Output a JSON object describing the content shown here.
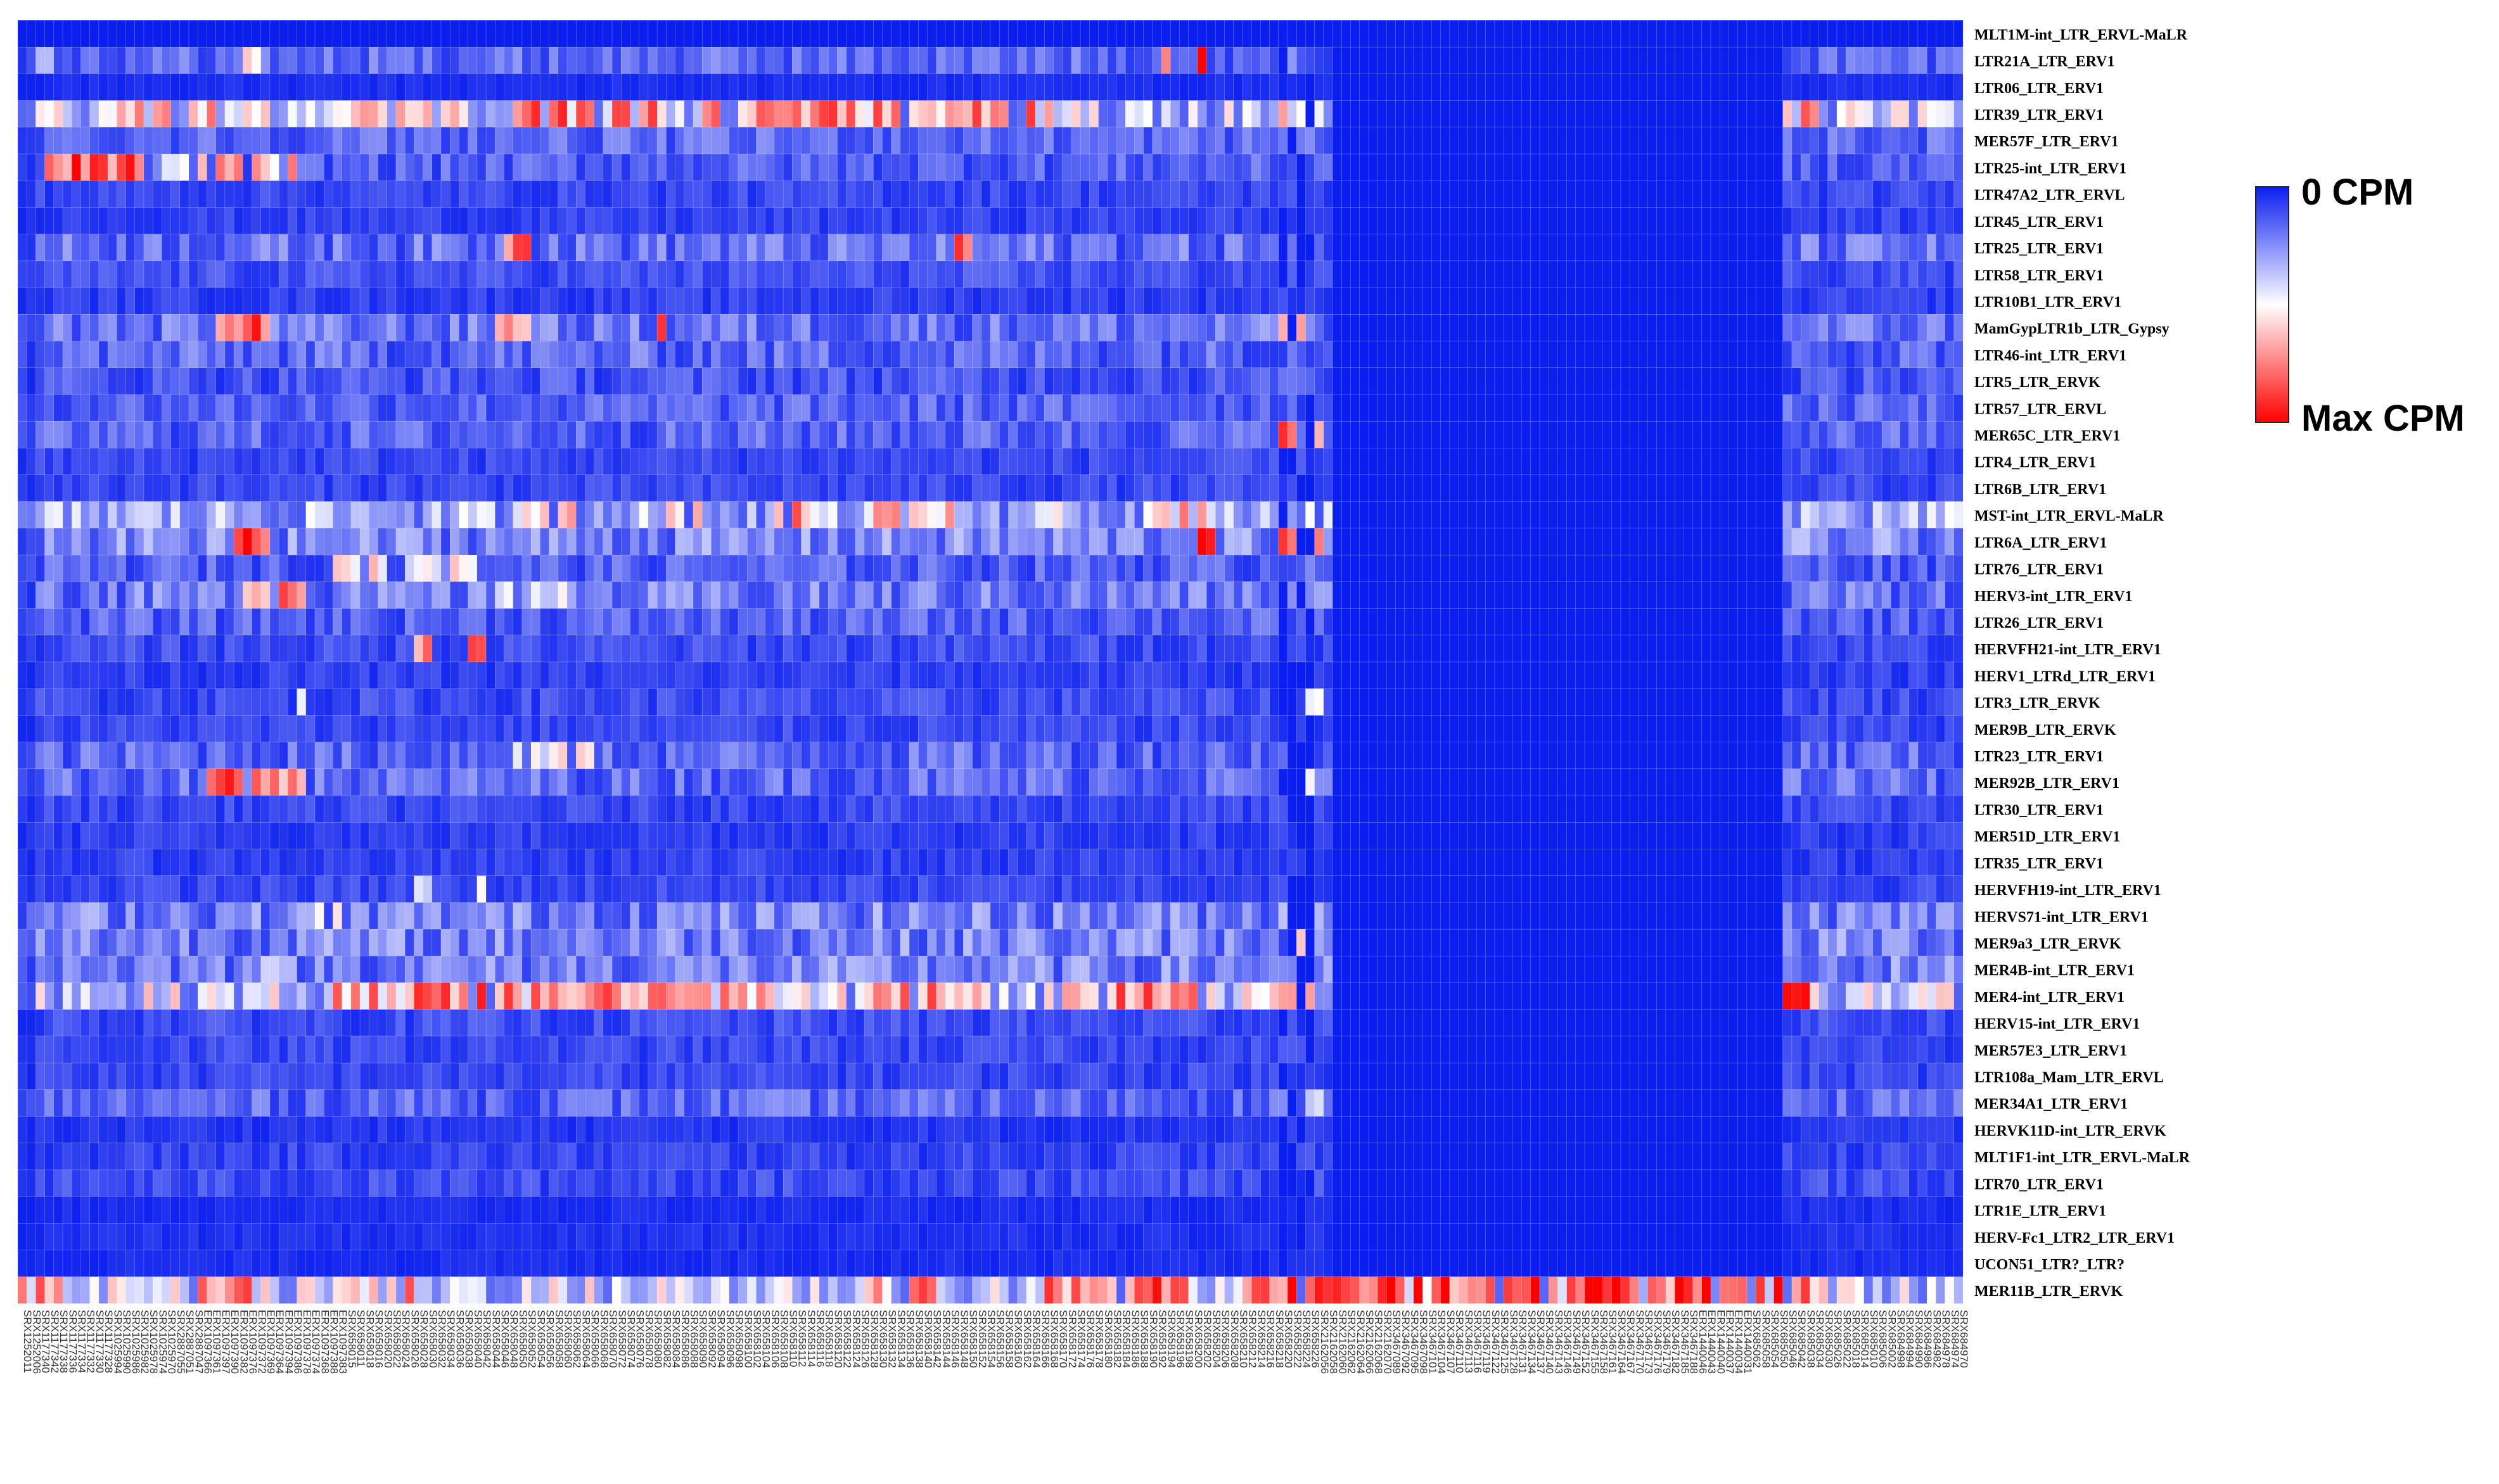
{
  "chart_data": {
    "type": "heatmap",
    "title": "",
    "xlabel": "",
    "ylabel": "",
    "legend": {
      "min_label": "0 CPM",
      "max_label": "Max CPM",
      "colors": [
        "#0a1ef0",
        "#ffffff",
        "#ff0000"
      ]
    },
    "rows": [
      "MLT1M-int_LTR_ERVL-MaLR",
      "LTR21A_LTR_ERV1",
      "LTR06_LTR_ERV1",
      "LTR39_LTR_ERV1",
      "MER57F_LTR_ERV1",
      "LTR25-int_LTR_ERV1",
      "LTR47A2_LTR_ERVL",
      "LTR45_LTR_ERV1",
      "LTR25_LTR_ERV1",
      "LTR58_LTR_ERV1",
      "LTR10B1_LTR_ERV1",
      "MamGypLTR1b_LTR_Gypsy",
      "LTR46-int_LTR_ERV1",
      "LTR5_LTR_ERVK",
      "LTR57_LTR_ERVL",
      "MER65C_LTR_ERV1",
      "LTR4_LTR_ERV1",
      "LTR6B_LTR_ERV1",
      "MST-int_LTR_ERVL-MaLR",
      "LTR6A_LTR_ERV1",
      "LTR76_LTR_ERV1",
      "HERV3-int_LTR_ERV1",
      "LTR26_LTR_ERV1",
      "HERVFH21-int_LTR_ERV1",
      "HERV1_LTRd_LTR_ERV1",
      "LTR3_LTR_ERVK",
      "MER9B_LTR_ERVK",
      "LTR23_LTR_ERV1",
      "MER92B_LTR_ERV1",
      "LTR30_LTR_ERV1",
      "MER51D_LTR_ERV1",
      "LTR35_LTR_ERV1",
      "HERVFH19-int_LTR_ERV1",
      "HERVS71-int_LTR_ERV1",
      "MER9a3_LTR_ERVK",
      "MER4B-int_LTR_ERV1",
      "MER4-int_LTR_ERV1",
      "HERV15-int_LTR_ERV1",
      "MER57E3_LTR_ERV1",
      "LTR108a_Mam_LTR_ERVL",
      "MER34A1_LTR_ERV1",
      "HERVK11D-int_LTR_ERVK",
      "MLT1F1-int_LTR_ERVL-MaLR",
      "LTR70_LTR_ERV1",
      "LTR1E_LTR_ERV1",
      "HERV-Fc1_LTR2_LTR_ERV1",
      "UCON51_LTR?_LTR?",
      "MER11B_LTR_ERVK"
    ],
    "columns": [
      "SRX1252011",
      "SRX1252006",
      "SRX1177340",
      "SRX1177342",
      "SRX1177338",
      "SRX1177336",
      "SRX1177334",
      "SRX1177332",
      "SRX1177330",
      "SRX1177328",
      "SRX1025994",
      "SRX1025990",
      "SRX1025986",
      "SRX1025982",
      "SRX1025978",
      "SRX1025974",
      "SRX1025970",
      "SRX2887055",
      "SRX2887051",
      "SRX2887047",
      "ERX1097366",
      "ERX1097361",
      "ERX1097397",
      "ERX1097390",
      "ERX1097382",
      "ERX1097376",
      "ERX1097372",
      "ERX1097369",
      "ERX1097364",
      "ERX1097394",
      "ERX1097386",
      "ERX1097378",
      "ERX1097374",
      "ERX1097368",
      "ERX1097388",
      "ERX1097383",
      "SRX658015",
      "SRX658011",
      "SRX658018",
      "SRX658016",
      "SRX658020",
      "SRX658022",
      "SRX658024",
      "SRX658026",
      "SRX658028",
      "SRX658030",
      "SRX658032",
      "SRX658034",
      "SRX658036",
      "SRX658038",
      "SRX658040",
      "SRX658042",
      "SRX658044",
      "SRX658046",
      "SRX658048",
      "SRX658050",
      "SRX658052",
      "SRX658054",
      "SRX658056",
      "SRX658058",
      "SRX658060",
      "SRX658062",
      "SRX658064",
      "SRX658066",
      "SRX658068",
      "SRX658070",
      "SRX658072",
      "SRX658074",
      "SRX658076",
      "SRX658078",
      "SRX658080",
      "SRX658082",
      "SRX658084",
      "SRX658086",
      "SRX658088",
      "SRX658090",
      "SRX658092",
      "SRX658094",
      "SRX658096",
      "SRX658098",
      "SRX658100",
      "SRX658102",
      "SRX658104",
      "SRX658106",
      "SRX658108",
      "SRX658110",
      "SRX658112",
      "SRX658114",
      "SRX658116",
      "SRX658118",
      "SRX658120",
      "SRX658122",
      "SRX658124",
      "SRX658126",
      "SRX658128",
      "SRX658130",
      "SRX658132",
      "SRX658134",
      "SRX658136",
      "SRX658138",
      "SRX658140",
      "SRX658142",
      "SRX658144",
      "SRX658146",
      "SRX658148",
      "SRX658150",
      "SRX658152",
      "SRX658154",
      "SRX658156",
      "SRX658158",
      "SRX658160",
      "SRX658162",
      "SRX658164",
      "SRX658166",
      "SRX658168",
      "SRX658170",
      "SRX658172",
      "SRX658174",
      "SRX658176",
      "SRX658178",
      "SRX658180",
      "SRX658182",
      "SRX658184",
      "SRX658186",
      "SRX658188",
      "SRX658190",
      "SRX658192",
      "SRX658194",
      "SRX658196",
      "SRX658198",
      "SRX658200",
      "SRX658202",
      "SRX658204",
      "SRX658206",
      "SRX658208",
      "SRX658210",
      "SRX658212",
      "SRX658214",
      "SRX658216",
      "SRX658218",
      "SRX658220",
      "SRX658222",
      "SRX658224",
      "SRX658226",
      "SRX2162056",
      "SRX2162058",
      "SRX2162060",
      "SRX2162062",
      "SRX2162064",
      "SRX2162066",
      "SRX2162068",
      "SRX2162070",
      "SRX3467089",
      "SRX3467092",
      "SRX3467095",
      "SRX3467098",
      "SRX3467101",
      "SRX3467104",
      "SRX3467107",
      "SRX3467110",
      "SRX3467113",
      "SRX3467116",
      "SRX3467119",
      "SRX3467122",
      "SRX3467125",
      "SRX3467128",
      "SRX3467131",
      "SRX3467134",
      "SRX3467137",
      "SRX3467140",
      "SRX3467143",
      "SRX3467146",
      "SRX3467149",
      "SRX3467152",
      "SRX3467155",
      "SRX3467158",
      "SRX3467161",
      "SRX3467164",
      "SRX3467167",
      "SRX3467170",
      "SRX3467173",
      "SRX3467176",
      "SRX3467179",
      "SRX3467182",
      "SRX3467185",
      "SRX3467188",
      "ERX1440046",
      "ERX1440043",
      "ERX1440040",
      "ERX1440037",
      "ERX1440034",
      "ERX1440031",
      "SRX685062",
      "SRX685058",
      "SRX685054",
      "SRX685050",
      "SRX685046",
      "SRX685042",
      "SRX685038",
      "SRX685034",
      "SRX685030",
      "SRX685026",
      "SRX685022",
      "SRX685018",
      "SRX685014",
      "SRX685010",
      "SRX685006",
      "SRX685002",
      "SRX684998",
      "SRX684994",
      "SRX684990",
      "SRX684986",
      "SRX684982",
      "SRX684978",
      "SRX684974",
      "SRX684970"
    ],
    "value_range": [
      0,
      1
    ],
    "profiles": {
      "MLT1M-int_LTR_ERVL-MaLR": {
        "base": 0.0,
        "spread": 0.0
      },
      "LTR21A_LTR_ERV1": {
        "base": 0.16,
        "spread": 0.22,
        "hot": [
          [
            2,
            4,
            0.42
          ],
          [
            24,
            27,
            0.62
          ],
          [
            36,
            37,
            0.95
          ],
          [
            127,
            128,
            0.95
          ],
          [
            131,
            132,
            0.98
          ]
        ]
      },
      "LTR06_LTR_ERV1": {
        "base": 0.02,
        "spread": 0.05
      },
      "LTR39_LTR_ERV1": {
        "base": 0.36,
        "spread": 0.5,
        "hot": [
          [
            2,
            23,
            0.72
          ],
          [
            36,
            50,
            0.78
          ],
          [
            55,
            72,
            0.85
          ],
          [
            76,
            118,
            0.82
          ],
          [
            140,
            145,
            0.7
          ],
          [
            180,
            200,
            0.78
          ]
        ]
      },
      "MER57F_LTR_ERV1": {
        "base": 0.18,
        "spread": 0.2
      },
      "LTR25-int_LTR_ERV1": {
        "base": 0.12,
        "spread": 0.2,
        "hot": [
          [
            3,
            14,
            0.96
          ],
          [
            15,
            20,
            0.6
          ],
          [
            20,
            32,
            0.72
          ]
        ]
      },
      "LTR47A2_LTR_ERVL": {
        "base": 0.08,
        "spread": 0.12
      },
      "LTR45_LTR_ERV1": {
        "base": 0.07,
        "spread": 0.1
      },
      "LTR25_LTR_ERV1": {
        "base": 0.14,
        "spread": 0.26,
        "hot": [
          [
            54,
            57,
            0.95
          ],
          [
            104,
            106,
            0.85
          ]
        ]
      },
      "LTR58_LTR_ERV1": {
        "base": 0.1,
        "spread": 0.14
      },
      "LTR10B1_LTR_ERV1": {
        "base": 0.06,
        "spread": 0.1
      },
      "MamGypLTR1b_LTR_Gypsy": {
        "base": 0.16,
        "spread": 0.26,
        "hot": [
          [
            22,
            28,
            0.95
          ],
          [
            53,
            57,
            0.92
          ],
          [
            71,
            72,
            0.9
          ],
          [
            140,
            146,
            0.82
          ]
        ]
      },
      "LTR46-int_LTR_ERV1": {
        "base": 0.12,
        "spread": 0.24
      },
      "LTR5_LTR_ERVK": {
        "base": 0.08,
        "spread": 0.18
      },
      "LTR57_LTR_ERVL": {
        "base": 0.14,
        "spread": 0.2
      },
      "MER65C_LTR_ERV1": {
        "base": 0.12,
        "spread": 0.22,
        "hot": [
          [
            140,
            145,
            0.88
          ]
        ]
      },
      "LTR4_LTR_ERV1": {
        "base": 0.08,
        "spread": 0.12
      },
      "LTR6B_LTR_ERV1": {
        "base": 0.08,
        "spread": 0.12
      },
      "MST-int_LTR_ERVL-MaLR": {
        "base": 0.3,
        "spread": 0.4,
        "hot": [
          [
            54,
            62,
            0.72
          ],
          [
            72,
            76,
            0.8
          ],
          [
            84,
            88,
            0.86
          ],
          [
            94,
            104,
            0.72
          ],
          [
            112,
            116,
            0.8
          ],
          [
            124,
            132,
            0.72
          ],
          [
            185,
            196,
            0.72
          ]
        ]
      },
      "LTR6A_LTR_ERV1": {
        "base": 0.22,
        "spread": 0.3,
        "hot": [
          [
            24,
            29,
            0.95
          ],
          [
            131,
            133,
            0.95
          ],
          [
            140,
            145,
            0.82
          ]
        ]
      },
      "LTR76_LTR_ERV1": {
        "base": 0.12,
        "spread": 0.2,
        "hot": [
          [
            35,
            51,
            0.6
          ]
        ]
      },
      "HERV3-int_LTR_ERV1": {
        "base": 0.16,
        "spread": 0.28,
        "hot": [
          [
            25,
            28,
            0.72
          ],
          [
            29,
            32,
            0.9
          ],
          [
            53,
            62,
            0.55
          ]
        ]
      },
      "LTR26_LTR_ERV1": {
        "base": 0.12,
        "spread": 0.2
      },
      "HERVFH21-int_LTR_ERV1": {
        "base": 0.08,
        "spread": 0.14,
        "hot": [
          [
            44,
            46,
            0.95
          ],
          [
            50,
            52,
            0.95
          ]
        ]
      },
      "HERV1_LTRd_LTR_ERV1": {
        "base": 0.06,
        "spread": 0.1
      },
      "LTR3_LTR_ERVK": {
        "base": 0.08,
        "spread": 0.14,
        "hot": [
          [
            30,
            32,
            0.55
          ],
          [
            140,
            145,
            0.5
          ]
        ]
      },
      "MER9B_LTR_ERVK": {
        "base": 0.08,
        "spread": 0.12
      },
      "LTR23_LTR_ERV1": {
        "base": 0.12,
        "spread": 0.24,
        "hot": [
          [
            55,
            64,
            0.55
          ]
        ]
      },
      "MER92B_LTR_ERV1": {
        "base": 0.14,
        "spread": 0.24,
        "hot": [
          [
            21,
            30,
            0.88
          ],
          [
            30,
            32,
            0.95
          ],
          [
            140,
            145,
            0.55
          ]
        ]
      },
      "LTR30_LTR_ERV1": {
        "base": 0.08,
        "spread": 0.12
      },
      "MER51D_LTR_ERV1": {
        "base": 0.06,
        "spread": 0.1
      },
      "LTR35_LTR_ERV1": {
        "base": 0.06,
        "spread": 0.1
      },
      "HERVFH19-int_LTR_ERV1": {
        "base": 0.08,
        "spread": 0.12,
        "hot": [
          [
            44,
            46,
            0.5
          ],
          [
            50,
            52,
            0.5
          ]
        ]
      },
      "HERVS71-int_LTR_ERV1": {
        "base": 0.2,
        "spread": 0.3,
        "hot": [
          [
            33,
            37,
            0.55
          ],
          [
            140,
            145,
            0.5
          ]
        ]
      },
      "MER9a3_LTR_ERVK": {
        "base": 0.2,
        "spread": 0.3,
        "hot": [
          [
            140,
            145,
            0.62
          ]
        ]
      },
      "MER4B-int_LTR_ERV1": {
        "base": 0.18,
        "spread": 0.3,
        "hot": [
          [
            27,
            30,
            0.6
          ]
        ]
      },
      "MER4-int_LTR_ERV1": {
        "base": 0.4,
        "spread": 0.5,
        "hot": [
          [
            34,
            53,
            0.88
          ],
          [
            53,
            84,
            0.82
          ],
          [
            94,
            108,
            0.82
          ],
          [
            116,
            132,
            0.85
          ],
          [
            140,
            145,
            0.72
          ],
          [
            180,
            200,
            0.9
          ]
        ]
      },
      "HERV15-int_LTR_ERV1": {
        "base": 0.08,
        "spread": 0.14
      },
      "MER57E3_LTR_ERV1": {
        "base": 0.08,
        "spread": 0.12
      },
      "LTR108a_Mam_LTR_ERVL": {
        "base": 0.08,
        "spread": 0.12
      },
      "MER34A1_LTR_ERV1": {
        "base": 0.14,
        "spread": 0.22,
        "hot": [
          [
            140,
            145,
            0.45
          ]
        ]
      },
      "HERVK11D-int_LTR_ERVK": {
        "base": 0.04,
        "spread": 0.08
      },
      "MLT1F1-int_LTR_ERVL-MaLR": {
        "base": 0.06,
        "spread": 0.12
      },
      "LTR70_LTR_ERV1": {
        "base": 0.08,
        "spread": 0.14
      },
      "LTR1E_LTR_ERV1": {
        "base": 0.02,
        "spread": 0.05
      },
      "HERV-Fc1_LTR2_LTR_ERV1": {
        "base": 0.03,
        "spread": 0.06
      },
      "UCON51_LTR?_LTR?": {
        "base": 0.02,
        "spread": 0.05
      },
      "MER11B_LTR_ERVK": {
        "base": 0.4,
        "spread": 0.5,
        "hot": [
          [
            0,
            5,
            0.9
          ],
          [
            20,
            26,
            0.85
          ],
          [
            36,
            44,
            0.8
          ],
          [
            94,
            102,
            0.9
          ],
          [
            112,
            122,
            0.85
          ],
          [
            124,
            130,
            0.9
          ],
          [
            136,
            146,
            0.96
          ],
          [
            146,
            200,
            0.98
          ]
        ]
      }
    },
    "empty_columns": [
      [
        140,
        144,
        0.6
      ],
      [
        146,
        196,
        0.0
      ]
    ],
    "empty_exceptions": [
      "MER11B_LTR_ERVK"
    ]
  }
}
